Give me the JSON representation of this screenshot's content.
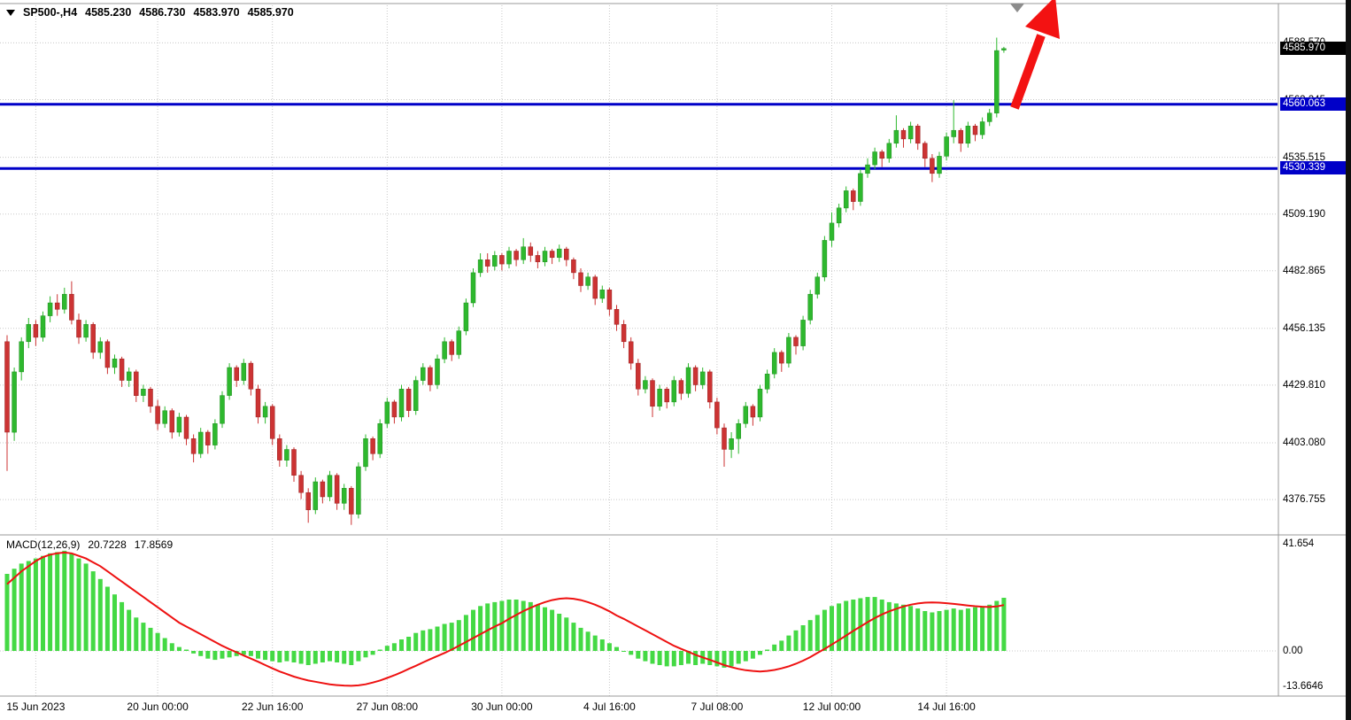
{
  "window": {
    "title_symbol": "SP500-,H4",
    "ohlc": {
      "open": "4585.230",
      "high": "4586.730",
      "low": "4583.970",
      "close": "4585.970"
    }
  },
  "colors": {
    "up": "#2eb82e",
    "up_border": "#1f8f1f",
    "down": "#cc3333",
    "down_border": "#992222",
    "grid": "#c8c8c8",
    "level_line": "#0000c8",
    "macd_hist": "#44d944",
    "macd_signal": "#ee1111",
    "arrow": "#f31212",
    "shift_marker": "#8c8c8c",
    "current_price_bg": "#000000",
    "level_label_bg": "#0000c8",
    "border": "#999999"
  },
  "price_axis": {
    "grid_labels": [
      {
        "text": "4588.570",
        "price": 4588.57
      },
      {
        "text": "4562.245",
        "price": 4562.245
      },
      {
        "text": "4535.515",
        "price": 4535.515
      },
      {
        "text": "4509.190",
        "price": 4509.19
      },
      {
        "text": "4482.865",
        "price": 4482.865
      },
      {
        "text": "4456.135",
        "price": 4456.135
      },
      {
        "text": "4429.810",
        "price": 4429.81
      },
      {
        "text": "4403.080",
        "price": 4403.08
      },
      {
        "text": "4376.755",
        "price": 4376.755
      }
    ],
    "current_price": {
      "text": "4585.970",
      "price": 4585.97
    },
    "levels": [
      {
        "text": "4560.063",
        "price": 4560.063
      },
      {
        "text": "4530.339",
        "price": 4530.339
      }
    ]
  },
  "macd_panel": {
    "indicator_label": "MACD(12,26,9)",
    "value_main": "20.7228",
    "value_signal": "17.8569",
    "axis_labels": [
      {
        "text": "41.654",
        "value": 41.654
      },
      {
        "text": "0.00",
        "value": 0
      },
      {
        "text": "-13.6646",
        "value": -13.6646
      }
    ]
  },
  "time_axis": {
    "labels": [
      {
        "text": "15 Jun 2023",
        "bar_index": 4
      },
      {
        "text": "20 Jun 00:00",
        "bar_index": 21
      },
      {
        "text": "22 Jun 16:00",
        "bar_index": 37
      },
      {
        "text": "27 Jun 08:00",
        "bar_index": 53
      },
      {
        "text": "30 Jun 00:00",
        "bar_index": 69
      },
      {
        "text": "4 Jul 16:00",
        "bar_index": 84
      },
      {
        "text": "7 Jul 08:00",
        "bar_index": 99
      },
      {
        "text": "12 Jul 00:00",
        "bar_index": 115
      },
      {
        "text": "14 Jul 16:00",
        "bar_index": 131
      }
    ]
  },
  "chart_data": [
    {
      "type": "candlestick",
      "symbol": "SP500",
      "timeframe": "H4",
      "title": "SP500-,H4",
      "ylim": [
        4362,
        4606
      ],
      "horizontal_levels": [
        4560.063,
        4530.339
      ],
      "last_price": 4585.97,
      "columns": [
        "open",
        "high",
        "low",
        "close"
      ],
      "ohlc": [
        [
          4450,
          4453,
          4390,
          4408
        ],
        [
          4408,
          4438,
          4404,
          4436
        ],
        [
          4436,
          4452,
          4432,
          4450
        ],
        [
          4450,
          4461,
          4447,
          4458
        ],
        [
          4458,
          4460,
          4448,
          4452
        ],
        [
          4452,
          4464,
          4450,
          4462
        ],
        [
          4462,
          4471,
          4459,
          4468
        ],
        [
          4468,
          4472,
          4462,
          4465
        ],
        [
          4465,
          4475,
          4463,
          4472
        ],
        [
          4472,
          4478,
          4458,
          4460
        ],
        [
          4460,
          4463,
          4449,
          4452
        ],
        [
          4452,
          4460,
          4450,
          4458
        ],
        [
          4458,
          4459,
          4442,
          4445
        ],
        [
          4445,
          4452,
          4442,
          4450
        ],
        [
          4450,
          4451,
          4435,
          4438
        ],
        [
          4438,
          4444,
          4435,
          4442
        ],
        [
          4442,
          4443,
          4429,
          4432
        ],
        [
          4432,
          4438,
          4429,
          4436
        ],
        [
          4436,
          4437,
          4422,
          4425
        ],
        [
          4425,
          4430,
          4422,
          4428
        ],
        [
          4428,
          4429,
          4417,
          4420
        ],
        [
          4420,
          4423,
          4409,
          4412
        ],
        [
          4412,
          4420,
          4410,
          4418
        ],
        [
          4418,
          4419,
          4405,
          4408
        ],
        [
          4408,
          4417,
          4406,
          4415
        ],
        [
          4415,
          4416,
          4402,
          4405
        ],
        [
          4405,
          4407,
          4394,
          4398
        ],
        [
          4398,
          4410,
          4396,
          4408
        ],
        [
          4408,
          4409,
          4398,
          4402
        ],
        [
          4402,
          4414,
          4400,
          4412
        ],
        [
          4412,
          4427,
          4410,
          4425
        ],
        [
          4425,
          4440,
          4423,
          4438
        ],
        [
          4438,
          4439,
          4429,
          4432
        ],
        [
          4432,
          4442,
          4430,
          4440
        ],
        [
          4440,
          4441,
          4425,
          4428
        ],
        [
          4428,
          4430,
          4412,
          4415
        ],
        [
          4415,
          4422,
          4412,
          4420
        ],
        [
          4420,
          4421,
          4402,
          4405
        ],
        [
          4405,
          4407,
          4392,
          4395
        ],
        [
          4395,
          4402,
          4392,
          4400
        ],
        [
          4400,
          4401,
          4385,
          4388
        ],
        [
          4388,
          4390,
          4377,
          4380
        ],
        [
          4380,
          4382,
          4366,
          4372
        ],
        [
          4372,
          4387,
          4370,
          4385
        ],
        [
          4385,
          4386,
          4375,
          4378
        ],
        [
          4378,
          4390,
          4376,
          4388
        ],
        [
          4388,
          4389,
          4372,
          4375
        ],
        [
          4375,
          4384,
          4372,
          4382
        ],
        [
          4382,
          4383,
          4365,
          4370
        ],
        [
          4370,
          4394,
          4368,
          4392
        ],
        [
          4392,
          4407,
          4390,
          4405
        ],
        [
          4405,
          4406,
          4395,
          4398
        ],
        [
          4398,
          4414,
          4396,
          4412
        ],
        [
          4412,
          4424,
          4410,
          4422
        ],
        [
          4422,
          4423,
          4412,
          4415
        ],
        [
          4415,
          4430,
          4413,
          4428
        ],
        [
          4428,
          4429,
          4415,
          4418
        ],
        [
          4418,
          4434,
          4416,
          4432
        ],
        [
          4432,
          4440,
          4430,
          4438
        ],
        [
          4438,
          4439,
          4427,
          4430
        ],
        [
          4430,
          4444,
          4428,
          4442
        ],
        [
          4442,
          4452,
          4440,
          4450
        ],
        [
          4450,
          4451,
          4441,
          4444
        ],
        [
          4444,
          4457,
          4442,
          4455
        ],
        [
          4455,
          4470,
          4453,
          4468
        ],
        [
          4468,
          4484,
          4466,
          4482
        ],
        [
          4482,
          4491,
          4480,
          4488
        ],
        [
          4488,
          4491,
          4482,
          4485
        ],
        [
          4485,
          4492,
          4483,
          4490
        ],
        [
          4490,
          4491,
          4483,
          4486
        ],
        [
          4486,
          4494,
          4484,
          4492
        ],
        [
          4492,
          4493,
          4485,
          4488
        ],
        [
          4488,
          4498,
          4486,
          4494
        ],
        [
          4494,
          4496,
          4487,
          4490
        ],
        [
          4490,
          4492,
          4484,
          4487
        ],
        [
          4487,
          4494,
          4485,
          4492
        ],
        [
          4492,
          4493,
          4486,
          4489
        ],
        [
          4489,
          4495,
          4487,
          4493
        ],
        [
          4493,
          4494,
          4485,
          4488
        ],
        [
          4488,
          4489,
          4479,
          4482
        ],
        [
          4482,
          4484,
          4473,
          4476
        ],
        [
          4476,
          4482,
          4474,
          4480
        ],
        [
          4480,
          4481,
          4467,
          4470
        ],
        [
          4470,
          4476,
          4468,
          4474
        ],
        [
          4474,
          4475,
          4462,
          4465
        ],
        [
          4465,
          4467,
          4455,
          4458
        ],
        [
          4458,
          4460,
          4447,
          4450
        ],
        [
          4450,
          4452,
          4437,
          4440
        ],
        [
          4440,
          4442,
          4425,
          4428
        ],
        [
          4428,
          4434,
          4426,
          4432
        ],
        [
          4432,
          4433,
          4415,
          4420
        ],
        [
          4420,
          4430,
          4418,
          4428
        ],
        [
          4428,
          4429,
          4419,
          4422
        ],
        [
          4422,
          4434,
          4420,
          4432
        ],
        [
          4432,
          4433,
          4423,
          4426
        ],
        [
          4426,
          4440,
          4424,
          4438
        ],
        [
          4438,
          4439,
          4427,
          4430
        ],
        [
          4430,
          4438,
          4428,
          4436
        ],
        [
          4436,
          4437,
          4419,
          4422
        ],
        [
          4422,
          4424,
          4407,
          4410
        ],
        [
          4410,
          4412,
          4392,
          4400
        ],
        [
          4400,
          4408,
          4396,
          4405
        ],
        [
          4405,
          4414,
          4398,
          4412
        ],
        [
          4412,
          4422,
          4410,
          4420
        ],
        [
          4420,
          4421,
          4411,
          4415
        ],
        [
          4415,
          4430,
          4413,
          4428
        ],
        [
          4428,
          4437,
          4426,
          4435
        ],
        [
          4435,
          4447,
          4433,
          4445
        ],
        [
          4445,
          4446,
          4436,
          4440
        ],
        [
          4440,
          4454,
          4438,
          4452
        ],
        [
          4452,
          4453,
          4444,
          4448
        ],
        [
          4448,
          4462,
          4446,
          4460
        ],
        [
          4460,
          4474,
          4458,
          4472
        ],
        [
          4472,
          4482,
          4470,
          4480
        ],
        [
          4480,
          4499,
          4478,
          4497
        ],
        [
          4497,
          4510,
          4494,
          4505
        ],
        [
          4505,
          4514,
          4503,
          4512
        ],
        [
          4512,
          4522,
          4510,
          4520
        ],
        [
          4520,
          4521,
          4511,
          4515
        ],
        [
          4515,
          4530,
          4513,
          4528
        ],
        [
          4528,
          4535,
          4526,
          4532
        ],
        [
          4532,
          4540,
          4530,
          4538
        ],
        [
          4538,
          4539,
          4531,
          4535
        ],
        [
          4535,
          4544,
          4533,
          4542
        ],
        [
          4542,
          4555,
          4540,
          4548
        ],
        [
          4548,
          4549,
          4540,
          4544
        ],
        [
          4544,
          4552,
          4542,
          4550
        ],
        [
          4550,
          4551,
          4539,
          4542
        ],
        [
          4542,
          4543,
          4531,
          4535
        ],
        [
          4535,
          4537,
          4524,
          4528
        ],
        [
          4528,
          4538,
          4526,
          4536
        ],
        [
          4536,
          4547,
          4534,
          4545
        ],
        [
          4545,
          4562,
          4542,
          4548
        ],
        [
          4548,
          4549,
          4538,
          4542
        ],
        [
          4542,
          4552,
          4540,
          4550
        ],
        [
          4550,
          4551,
          4543,
          4546
        ],
        [
          4546,
          4554,
          4544,
          4552
        ],
        [
          4552,
          4558,
          4550,
          4556
        ],
        [
          4556,
          4591,
          4554,
          4585
        ],
        [
          4585.23,
          4586.73,
          4583.97,
          4585.97
        ]
      ]
    },
    {
      "type": "macd",
      "name": "MACD(12,26,9)",
      "params": {
        "fast": 12,
        "slow": 26,
        "signal": 9
      },
      "ylim": [
        -17.6,
        43.8
      ],
      "current_macd": 20.7228,
      "current_signal": 17.8569,
      "histogram": [
        30,
        32,
        34,
        35,
        36,
        37,
        38,
        38.5,
        39,
        38,
        36,
        34,
        31,
        28,
        25,
        22,
        19,
        16,
        13,
        11,
        9,
        7,
        5,
        3,
        1.5,
        0.5,
        -1,
        -2,
        -3,
        -3.5,
        -3,
        -2.5,
        -2,
        -1.5,
        -2,
        -3,
        -3.5,
        -4,
        -4.5,
        -4,
        -4.5,
        -5,
        -5.5,
        -5,
        -4.5,
        -4,
        -4.5,
        -5,
        -5.5,
        -4,
        -2.5,
        -1.5,
        0.5,
        2,
        3,
        4.5,
        5.5,
        7,
        8,
        8.5,
        9.5,
        10.5,
        11,
        12,
        14,
        16,
        17.5,
        18.5,
        19,
        19.5,
        20,
        20,
        19.5,
        19,
        18,
        17,
        16,
        14.5,
        13,
        11,
        9,
        7.5,
        6,
        4.5,
        3,
        1.5,
        0,
        -1.5,
        -3,
        -4,
        -5,
        -5.5,
        -6,
        -6,
        -5.5,
        -5,
        -5.5,
        -5,
        -5.5,
        -6,
        -6.5,
        -6,
        -5,
        -4,
        -3,
        -1.5,
        0.5,
        2.5,
        4,
        6,
        8,
        10,
        12,
        14,
        16,
        17.5,
        18.5,
        19.5,
        20,
        20.5,
        21,
        21,
        20,
        19,
        18.5,
        18,
        17.5,
        16.5,
        15.5,
        15,
        15.5,
        16,
        16.5,
        16,
        16.5,
        17,
        17.5,
        18,
        19.5,
        20.7
      ],
      "signal_line": [
        26,
        28.5,
        31,
        33,
        35,
        36.5,
        37.5,
        38,
        38.3,
        38,
        37,
        36,
        34.5,
        33,
        31,
        29,
        27,
        25,
        23,
        21,
        19,
        17,
        15,
        13,
        11,
        9.5,
        8,
        6.5,
        5,
        3.5,
        2,
        0.7,
        -0.5,
        -1.8,
        -3,
        -4.2,
        -5.5,
        -6.8,
        -8,
        -9,
        -10,
        -10.8,
        -11.5,
        -12,
        -12.5,
        -13,
        -13.3,
        -13.5,
        -13.6,
        -13.4,
        -13,
        -12.3,
        -11.5,
        -10.5,
        -9.5,
        -8.3,
        -7,
        -5.8,
        -4.5,
        -3.2,
        -2,
        -0.8,
        0.5,
        2,
        3.5,
        5,
        6.5,
        8,
        9.5,
        10.8,
        12.5,
        14,
        15.5,
        16.8,
        18,
        19,
        19.8,
        20.3,
        20.5,
        20.3,
        19.8,
        19,
        18,
        16.8,
        15.4,
        13.8,
        12.5,
        11,
        9.5,
        8,
        6.5,
        5,
        3.5,
        2,
        0.8,
        -0.3,
        -1.5,
        -2.5,
        -3.5,
        -4.5,
        -5.5,
        -6.3,
        -7,
        -7.5,
        -7.8,
        -8,
        -7.8,
        -7.4,
        -6.8,
        -6,
        -5,
        -3.8,
        -2.4,
        -0.8,
        0.8,
        2.5,
        4.2,
        6,
        7.8,
        9.5,
        11.2,
        12.8,
        14.2,
        15.4,
        16.4,
        17.3,
        18,
        18.5,
        18.8,
        18.9,
        18.8,
        18.6,
        18.3,
        18,
        17.7,
        17.4,
        17.2,
        17.1,
        17.3,
        17.86
      ]
    }
  ]
}
